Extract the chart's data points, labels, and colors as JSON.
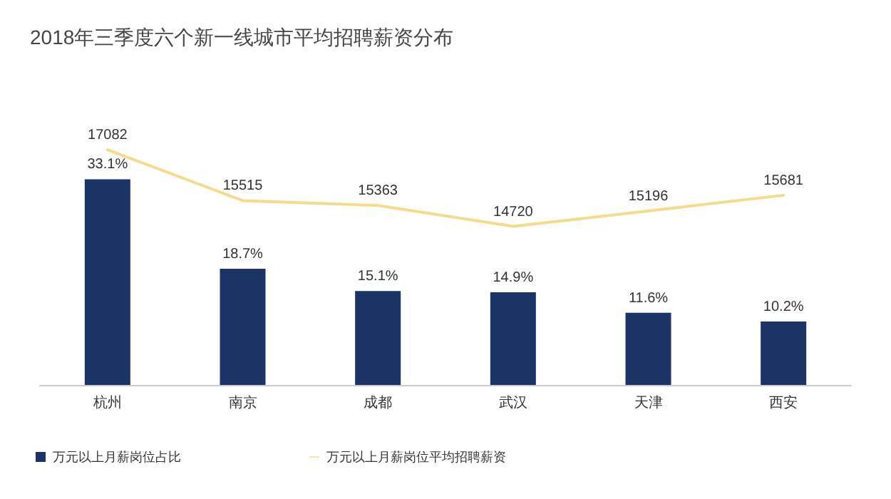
{
  "chart_data": {
    "type": "bar",
    "title": "2018年三季度六个新一线城市平均招聘薪资分布",
    "categories": [
      "杭州",
      "南京",
      "成都",
      "武汉",
      "天津",
      "西安"
    ],
    "series": [
      {
        "name": "万元以上月薪岗位占比",
        "color": "#1c3366",
        "values": [
          33.1,
          18.7,
          15.1,
          14.9,
          11.6,
          10.2
        ],
        "value_labels": [
          "33.1%",
          "18.7%",
          "15.1%",
          "14.9%",
          "11.6%",
          "10.2%"
        ]
      },
      {
        "name": "万元以上月薪岗位平均招聘薪资",
        "type": "line",
        "axis": "y2",
        "color": "#f5dc8c",
        "marker": "none",
        "values": [
          17082,
          15515,
          15363,
          14720,
          15196,
          15681
        ],
        "value_labels": [
          "17082",
          "15515",
          "15363",
          "14720",
          "15196",
          "15681"
        ]
      }
    ],
    "legend": "bottom left",
    "grid": false
  }
}
